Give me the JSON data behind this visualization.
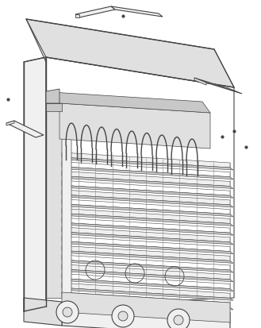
{
  "background_color": "#ffffff",
  "line_color": "#444444",
  "line_color_light": "#888888",
  "fill_white": "#ffffff",
  "fill_light": "#f0f0f0",
  "fill_mid": "#e0e0e0",
  "fill_dark": "#c8c8c8",
  "fig_width": 3.29,
  "fig_height": 4.13,
  "dpi": 100
}
